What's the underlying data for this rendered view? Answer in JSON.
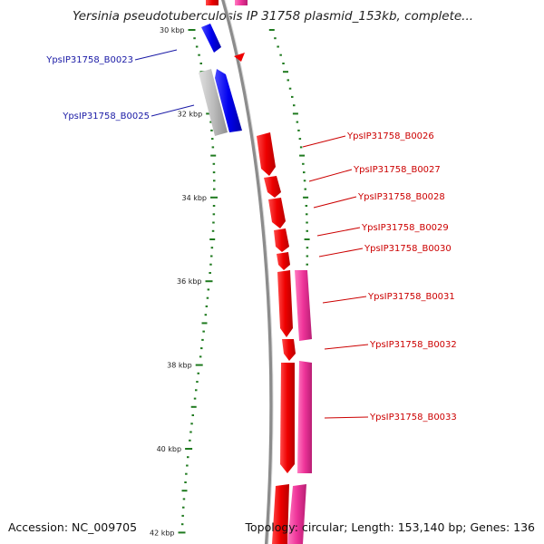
{
  "title": "Yersinia pseudotuberculosis IP 31758 plasmid_153kb, complete...",
  "footer": {
    "accession": "Accession: NC_009705",
    "summary": "Topology: circular; Length: 153,140 bp; Genes: 136"
  },
  "colors": {
    "backbone": "#8c8c8c",
    "tick": "#1f7a1f",
    "cds_forward": "#ee0000",
    "cds_reverse": "#0000ee",
    "pseudo": "#bdbdbd",
    "pink": "#ee3399",
    "label_forward": "#cc0000",
    "label_reverse": "#1a1aa6"
  },
  "scale": {
    "major_ticks": [
      {
        "kbp": 30,
        "label": "30 kbp"
      },
      {
        "kbp": 32,
        "label": "32 kbp"
      },
      {
        "kbp": 34,
        "label": "34 kbp"
      },
      {
        "kbp": 36,
        "label": "36 kbp"
      },
      {
        "kbp": 38,
        "label": "38 kbp"
      },
      {
        "kbp": 40,
        "label": "40 kbp"
      },
      {
        "kbp": 42,
        "label": "42 kbp"
      }
    ]
  },
  "gene_labels": [
    {
      "name": "YpsIP31758_B0023",
      "strand": "reverse"
    },
    {
      "name": "YpsIP31758_B0025",
      "strand": "reverse"
    },
    {
      "name": "YpsIP31758_B0026",
      "strand": "forward"
    },
    {
      "name": "YpsIP31758_B0027",
      "strand": "forward"
    },
    {
      "name": "YpsIP31758_B0028",
      "strand": "forward"
    },
    {
      "name": "YpsIP31758_B0029",
      "strand": "forward"
    },
    {
      "name": "YpsIP31758_B0030",
      "strand": "forward"
    },
    {
      "name": "YpsIP31758_B0031",
      "strand": "forward"
    },
    {
      "name": "YpsIP31758_B0032",
      "strand": "forward"
    },
    {
      "name": "YpsIP31758_B0033",
      "strand": "forward"
    }
  ]
}
